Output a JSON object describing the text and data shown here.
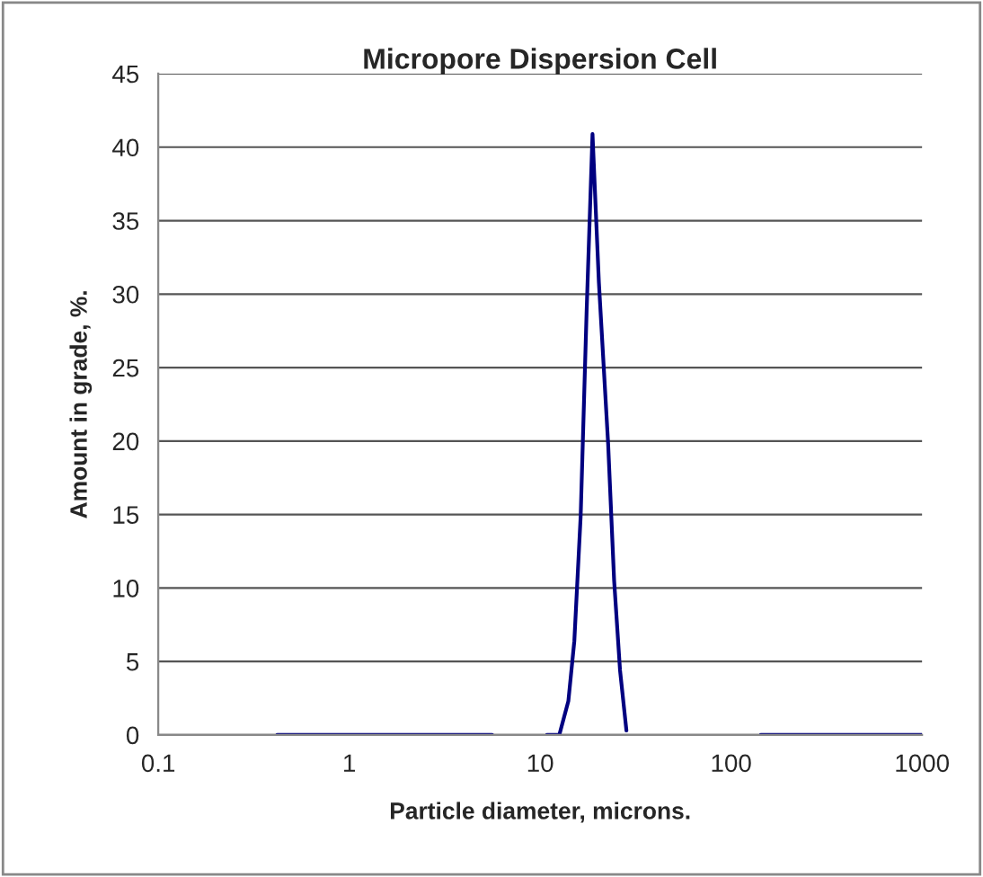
{
  "chart_data": {
    "type": "line",
    "title": "Micropore Dispersion Cell",
    "xlabel": "Particle diameter, microns.",
    "ylabel": "Amount in grade, %.",
    "log": "x",
    "xlim": [
      0.1,
      1000
    ],
    "xticks": [
      0.1,
      1,
      10,
      100,
      1000
    ],
    "ylim": [
      0,
      45
    ],
    "yticks": [
      0,
      5,
      10,
      15,
      20,
      25,
      30,
      35,
      40,
      45
    ],
    "grid": "y",
    "legend": false,
    "marker": "none",
    "line_style": "solid",
    "series": [
      {
        "color": "#000080",
        "x": [
          0.42,
          5.6,
          8,
          10.85,
          12.6,
          14.05,
          15.1,
          16.3,
          17.5,
          18.8,
          20.3,
          22.7,
          24.4,
          26.2,
          28.3,
          60,
          143,
          1000
        ],
        "values": [
          0,
          0,
          null,
          0,
          0,
          2.3,
          6.4,
          14.9,
          28.7,
          40.9,
          30.8,
          19.8,
          10.5,
          4.4,
          0.3,
          null,
          0,
          0
        ]
      }
    ]
  }
}
